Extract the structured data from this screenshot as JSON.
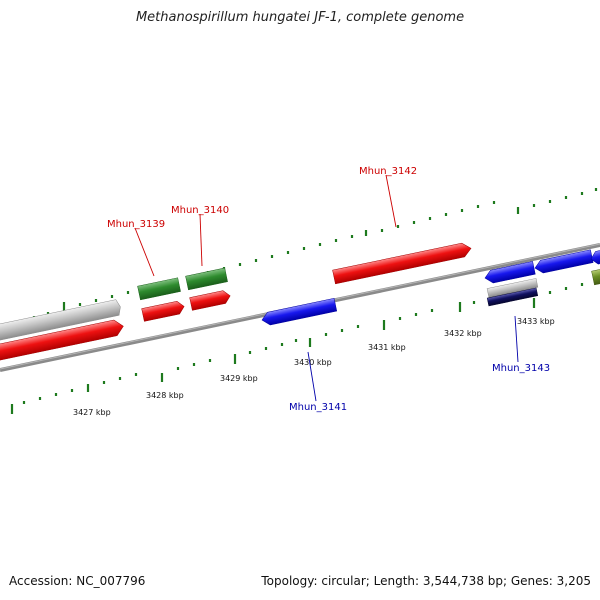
{
  "header": {
    "title": "Methanospirillum hungatei JF-1, complete genome"
  },
  "footer": {
    "accession": "Accession: NC_007796",
    "topology": "Topology: circular; Length: 3,544,738 bp; Genes: 3,205"
  },
  "colors": {
    "forward_gene": "#ee1111",
    "reverse_gene": "#1818ee",
    "rna_feature": "#2e8b2e",
    "pseudo_feature": "#b8b8b8",
    "other_feature": "#6b8e23",
    "dark_feature": "#101060",
    "tick": "#1e7a1e",
    "backbone": "#7a7a7a",
    "forward_label": "#cc0000",
    "reverse_label": "#0000aa"
  },
  "scale_labels": [
    "3427 kbp",
    "3428 kbp",
    "3429 kbp",
    "3430 kbp",
    "3431 kbp",
    "3432 kbp",
    "3433 kbp"
  ],
  "gene_labels": [
    {
      "name": "Mhun_3139",
      "strand": "forward"
    },
    {
      "name": "Mhun_3140",
      "strand": "forward"
    },
    {
      "name": "Mhun_3142",
      "strand": "forward"
    },
    {
      "name": "Mhun_3141",
      "strand": "reverse"
    },
    {
      "name": "Mhun_3143",
      "strand": "reverse"
    }
  ]
}
